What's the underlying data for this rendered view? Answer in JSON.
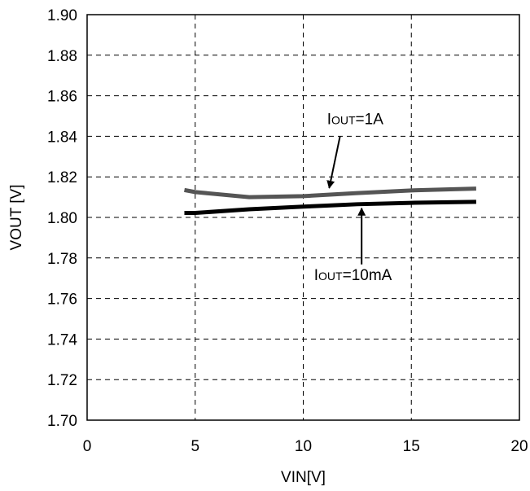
{
  "chart_data": {
    "type": "line",
    "xlabel": "VIN[V]",
    "ylabel": "VOUT [V]",
    "xlim": [
      0,
      20
    ],
    "ylim": [
      1.7,
      1.9
    ],
    "x_ticks": [
      "0",
      "5",
      "10",
      "15",
      "20"
    ],
    "y_ticks": [
      "1.70",
      "1.72",
      "1.74",
      "1.76",
      "1.78",
      "1.80",
      "1.82",
      "1.84",
      "1.86",
      "1.88",
      "1.90"
    ],
    "grid": true,
    "series": [
      {
        "name": "IOUT=1A",
        "color": "#555555",
        "x": [
          4.5,
          5.0,
          7.5,
          10.0,
          12.5,
          15.0,
          18.0
        ],
        "y": [
          1.8135,
          1.8125,
          1.81,
          1.8105,
          1.812,
          1.8133,
          1.8142
        ]
      },
      {
        "name": "IOUT=10mA",
        "color": "#000000",
        "x": [
          4.5,
          5.0,
          7.5,
          10.0,
          12.5,
          15.0,
          18.0
        ],
        "y": [
          1.8022,
          1.8022,
          1.804,
          1.8053,
          1.8065,
          1.8072,
          1.8077
        ]
      }
    ],
    "annotations": [
      {
        "main": "I",
        "sub": "OUT",
        "rest": "=1A",
        "text_x": 11.1,
        "text_y": 1.846,
        "arrow_from": [
          11.7,
          1.84
        ],
        "arrow_to": [
          11.2,
          1.8145
        ]
      },
      {
        "main": "I",
        "sub": "OUT",
        "rest": "=10mA",
        "text_x": 10.5,
        "text_y": 1.769,
        "arrow_from": [
          12.7,
          1.7768
        ],
        "arrow_to": [
          12.7,
          1.8045
        ]
      }
    ]
  }
}
